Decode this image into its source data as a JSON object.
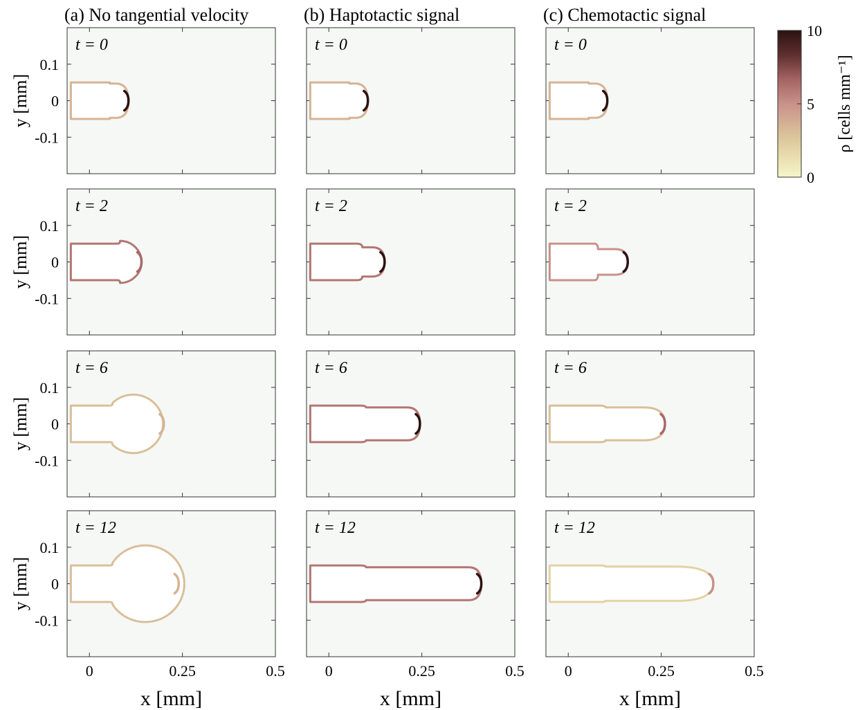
{
  "colors": {
    "panel_background": "#f6f8f6",
    "interior_fill": "#ffffff",
    "axis": "#333333",
    "colormap": [
      "#f5f5cc",
      "#e6d9a8",
      "#d6b896",
      "#c9918a",
      "#a46462",
      "#5e2f2e",
      "#2b1212"
    ]
  },
  "chart_data": {
    "type": "panel-grid",
    "columns": [
      {
        "id": "a",
        "label": "(a)",
        "title": "No tangential velocity"
      },
      {
        "id": "b",
        "label": "(b)",
        "title": "Haptotactic signal"
      },
      {
        "id": "c",
        "label": "(c)",
        "title": "Chemotactic signal"
      }
    ],
    "rows": [
      {
        "t_label": "t = 0",
        "t": 0
      },
      {
        "t_label": "t = 2",
        "t": 2
      },
      {
        "t_label": "t = 6",
        "t": 6
      },
      {
        "t_label": "t = 12",
        "t": 12
      }
    ],
    "xlabel": "x [mm]",
    "ylabel": "y [mm]",
    "xlim": [
      -0.06,
      0.5
    ],
    "ylim": [
      -0.2,
      0.2
    ],
    "xticks": [
      0,
      0.25,
      0.5
    ],
    "xtick_labels": [
      "0",
      "0.25",
      "0.5"
    ],
    "yticks": [
      0.1,
      0,
      -0.1
    ],
    "ytick_labels": [
      "0.1",
      "0",
      "-0.1"
    ],
    "colorbar": {
      "label": "ρ [cells mm⁻¹]",
      "range": [
        0,
        10
      ],
      "ticks": [
        0,
        5,
        10
      ],
      "tick_labels": [
        "0",
        "5",
        "10"
      ]
    },
    "shapes": {
      "a": [
        {
          "neck_end": 0.055,
          "head_start": 0.055,
          "head_cx": 0.055,
          "head_r": 0.05,
          "tip": 0.105,
          "tip_rho": 10,
          "rim_rho": 3.5
        },
        {
          "neck_end": 0.075,
          "head_start": 0.085,
          "head_cx": 0.11,
          "head_r": 0.055,
          "tip": 0.14,
          "tip_rho": 6.5,
          "rim_rho": 6,
          "bulb": true
        },
        {
          "neck_end": 0.055,
          "head_start": 0.06,
          "head_cx": 0.12,
          "head_r": 0.08,
          "tip": 0.2,
          "tip_rho": 3.5,
          "rim_rho": 3,
          "bulb": true
        },
        {
          "neck_end": 0.055,
          "head_start": 0.055,
          "head_cx": 0.13,
          "head_r": 0.105,
          "tip": 0.24,
          "tip_rho": 3.5,
          "rim_rho": 3,
          "bulb": true
        }
      ],
      "b": [
        {
          "neck_end": 0.055,
          "head_start": 0.055,
          "head_cx": 0.055,
          "head_r": 0.05,
          "tip": 0.105,
          "tip_rho": 10,
          "rim_rho": 3.5
        },
        {
          "neck_end": 0.075,
          "head_start": 0.09,
          "head_cx": 0.11,
          "head_r": 0.04,
          "tip": 0.15,
          "tip_rho": 10,
          "rim_rho": 6
        },
        {
          "neck_end": 0.085,
          "head_start": 0.1,
          "head_cx": 0.22,
          "head_r": 0.045,
          "tip": 0.245,
          "tip_rho": 10,
          "rim_rho": 6
        },
        {
          "neck_end": 0.085,
          "head_start": 0.1,
          "head_cx": 0.39,
          "head_r": 0.045,
          "tip": 0.41,
          "tip_rho": 10,
          "rim_rho": 6
        }
      ],
      "c": [
        {
          "neck_end": 0.055,
          "head_start": 0.055,
          "head_cx": 0.055,
          "head_r": 0.05,
          "tip": 0.105,
          "tip_rho": 10,
          "rim_rho": 3.5
        },
        {
          "neck_end": 0.07,
          "head_start": 0.08,
          "head_cx": 0.14,
          "head_r": 0.035,
          "tip": 0.16,
          "tip_rho": 10,
          "rim_rho": 5
        },
        {
          "neck_end": 0.085,
          "head_start": 0.1,
          "head_cx": 0.22,
          "head_r": 0.045,
          "tip": 0.26,
          "tip_rho": 6.5,
          "rim_rho": 3,
          "taper": true
        },
        {
          "neck_end": 0.085,
          "head_start": 0.1,
          "head_cx": 0.3,
          "head_r": 0.05,
          "tip": 0.39,
          "tip_rho": 5,
          "rim_rho": 2,
          "taper": true
        }
      ]
    }
  }
}
